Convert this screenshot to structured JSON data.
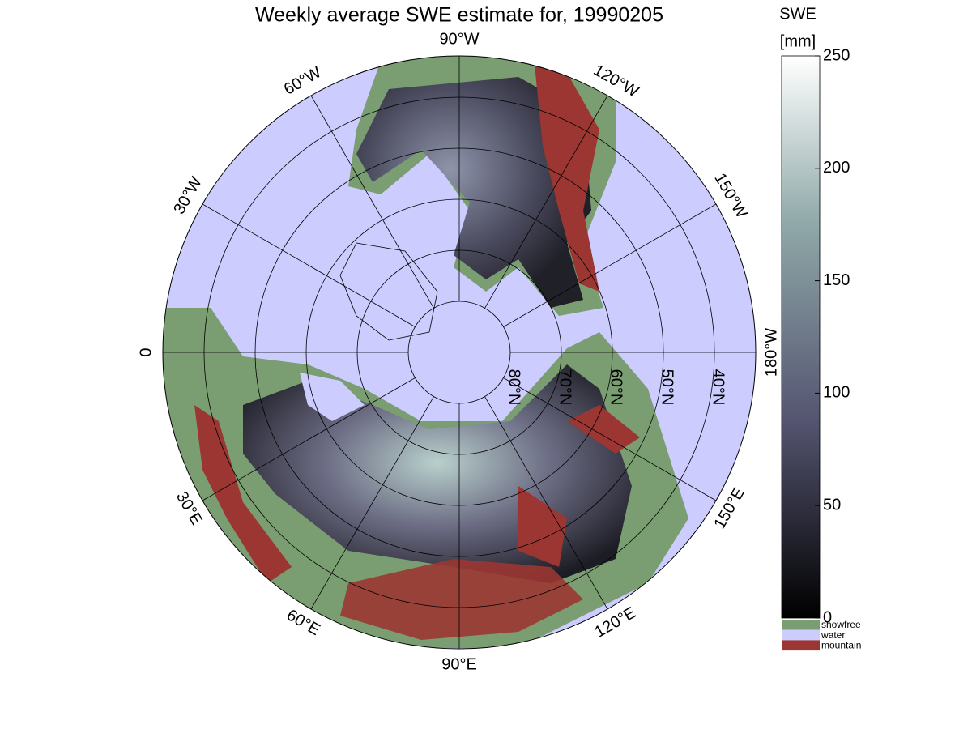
{
  "title": "Weekly average SWE estimate for, 19990205",
  "meridians": [
    {
      "value": -90,
      "label": "90°W"
    },
    {
      "value": -120,
      "label": "120°W"
    },
    {
      "value": -150,
      "label": "150°W"
    },
    {
      "value": 180,
      "label": "180°W"
    },
    {
      "value": 150,
      "label": "150°E"
    },
    {
      "value": 120,
      "label": "120°E"
    },
    {
      "value": 90,
      "label": "90°E"
    },
    {
      "value": 60,
      "label": "60°E"
    },
    {
      "value": 30,
      "label": "30°E"
    },
    {
      "value": 0,
      "label": "0"
    },
    {
      "value": -30,
      "label": "30°W"
    },
    {
      "value": -60,
      "label": "60°W"
    }
  ],
  "parallels": [
    {
      "value": 80,
      "label": "80°N"
    },
    {
      "value": 70,
      "label": "70°N"
    },
    {
      "value": 60,
      "label": "60°N"
    },
    {
      "value": 50,
      "label": "50°N"
    },
    {
      "value": 40,
      "label": "40°N"
    }
  ],
  "colorbar": {
    "label": [
      "SWE",
      "[mm]"
    ],
    "lim": [
      0,
      250
    ],
    "ticks": [
      0,
      50,
      100,
      150,
      200,
      250
    ]
  },
  "legend": [
    {
      "label": "snowfree",
      "color": "#7a9e72"
    },
    {
      "label": "water",
      "color": "#ccccff"
    },
    {
      "label": "mountain",
      "color": "#9b3632"
    }
  ]
}
